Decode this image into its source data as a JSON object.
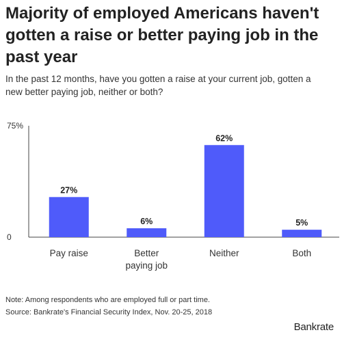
{
  "title": "Majority of employed Americans haven't\ngotten a raise or better paying job in the\npast year",
  "subtitle": "In the past 12 months, have you gotten a raise at your current job, gotten a\nnew better paying job, neither or both?",
  "chart_data": {
    "type": "bar",
    "categories": [
      "Pay raise",
      "Better\npaying job",
      "Neither",
      "Both"
    ],
    "values": [
      27,
      6,
      62,
      5
    ],
    "value_labels": [
      "27%",
      "6%",
      "62%",
      "5%"
    ],
    "ylim": [
      0,
      75
    ],
    "yticks": [
      "0",
      "75%"
    ],
    "bar_color": "#4f5bfa",
    "grid": false
  },
  "footer": {
    "note": "Note: Among respondents who are employed full or part time.",
    "source": "Source: Bankrate's Financial Security Index, Nov. 20-25, 2018",
    "brand": "Bankrate"
  }
}
